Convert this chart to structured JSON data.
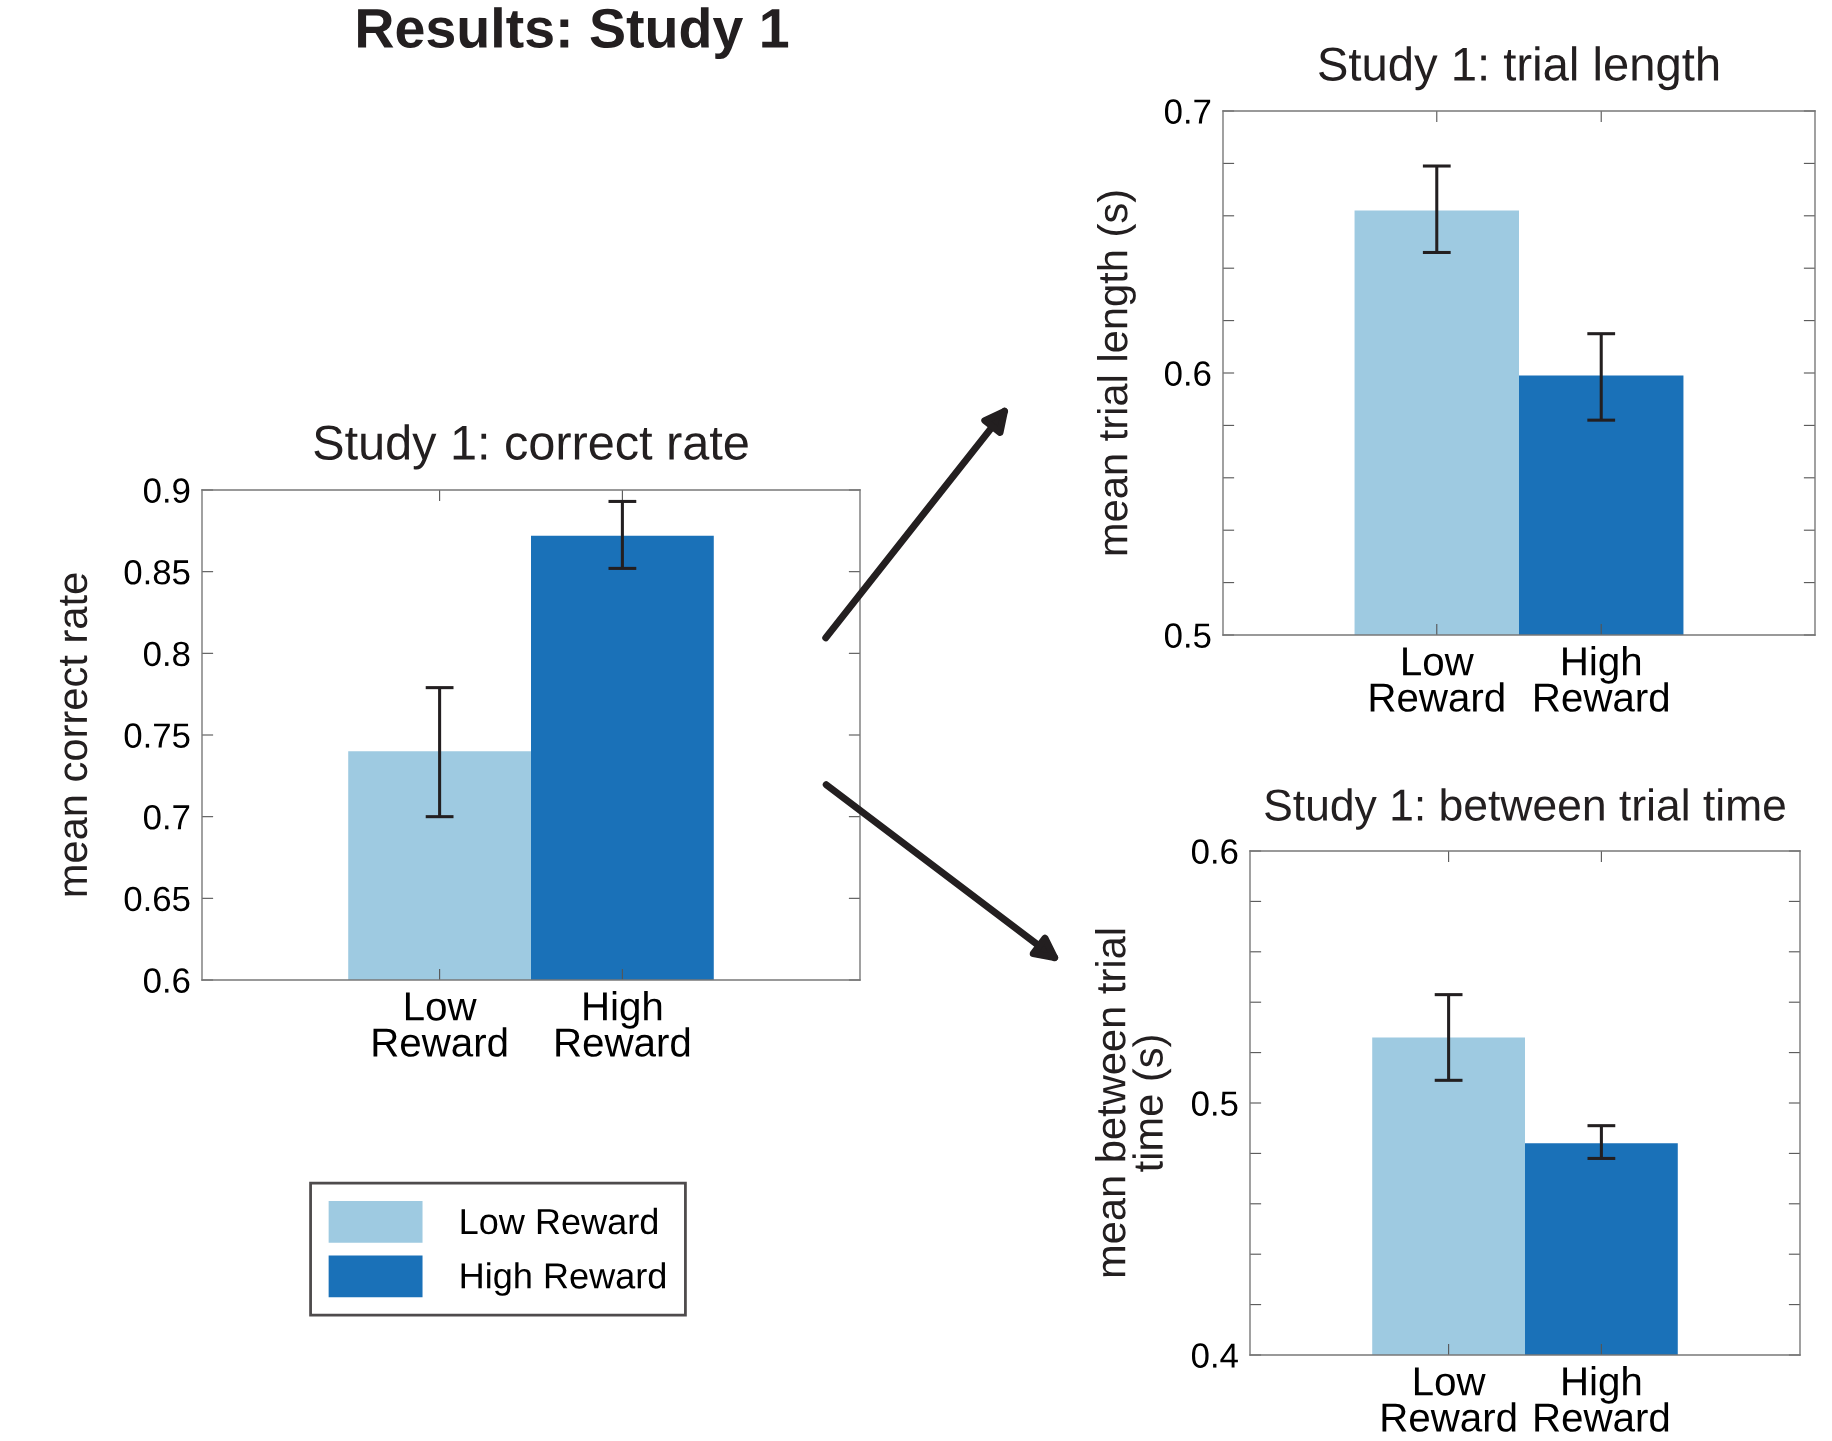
{
  "chart_data": [
    {
      "type": "bar",
      "title": "Study 1: correct rate",
      "ylabel": "mean correct rate",
      "categories": [
        "Low\nReward",
        "High\nReward"
      ],
      "series": [
        {
          "name": "Low Reward",
          "color": "#9ecae1",
          "values": [
            0.74,
            null
          ],
          "errors": [
            [
              0.7,
              0.779
            ],
            null
          ]
        },
        {
          "name": "High Reward",
          "color": "#1a71b8",
          "values": [
            null,
            0.872
          ],
          "errors": [
            null,
            [
              0.852,
              0.893
            ]
          ]
        }
      ],
      "ylim": [
        0.6,
        0.9
      ],
      "yticks": [
        0.6,
        0.65,
        0.7,
        0.75,
        0.8,
        0.85,
        0.9
      ],
      "grid": false,
      "legend": "bottom",
      "annotations": [
        "Results: Study 1"
      ]
    },
    {
      "type": "bar",
      "title": "Study 1: trial length",
      "ylabel": "mean trial length (s)",
      "categories": [
        "Low\nReward",
        "High\nReward"
      ],
      "series": [
        {
          "color": "#9ecae1",
          "values": [
            0.662,
            null
          ],
          "errors": [
            [
              0.646,
              0.679
            ],
            null
          ]
        },
        {
          "color": "#1a71b8",
          "values": [
            null,
            0.599
          ],
          "errors": [
            null,
            [
              0.582,
              0.615
            ]
          ]
        }
      ],
      "ylim": [
        0.5,
        0.7
      ],
      "yticks": [
        0.5,
        {
          "value": 0.52,
          "label": null
        },
        {
          "value": 0.54,
          "label": null
        },
        {
          "value": 0.56,
          "label": null
        },
        {
          "value": 0.58,
          "label": null
        },
        0.6,
        {
          "value": 0.62,
          "label": null
        },
        {
          "value": 0.64,
          "label": null
        },
        {
          "value": 0.66,
          "label": null
        },
        {
          "value": 0.68,
          "label": null
        },
        0.7
      ],
      "grid": false
    },
    {
      "type": "bar",
      "title": "Study 1: between trial time",
      "ylabel": "mean between trial\ntime (s)",
      "categories": [
        "Low\nReward",
        "High\nReward"
      ],
      "series": [
        {
          "color": "#9ecae1",
          "values": [
            0.526,
            null
          ],
          "errors": [
            [
              0.509,
              0.543
            ],
            null
          ]
        },
        {
          "color": "#1a71b8",
          "values": [
            null,
            0.484
          ],
          "errors": [
            null,
            [
              0.478,
              0.491
            ]
          ]
        }
      ],
      "ylim": [
        0.4,
        0.6
      ],
      "yticks": [
        0.4,
        {
          "value": 0.42,
          "label": null
        },
        {
          "value": 0.44,
          "label": null
        },
        {
          "value": 0.46,
          "label": null
        },
        {
          "value": 0.48,
          "label": null
        },
        0.5,
        {
          "value": 0.52,
          "label": null
        },
        {
          "value": 0.54,
          "label": null
        },
        {
          "value": 0.56,
          "label": null
        },
        {
          "value": 0.58,
          "label": null
        },
        0.6
      ],
      "grid": false
    }
  ]
}
